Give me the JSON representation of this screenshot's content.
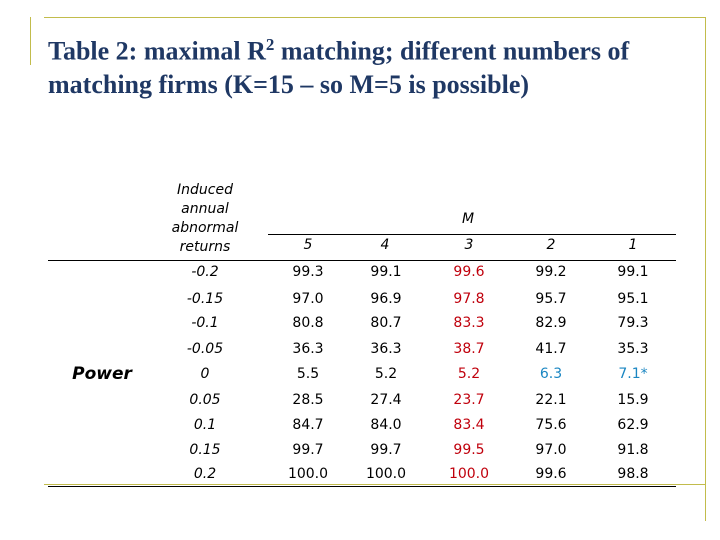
{
  "title": {
    "line1_pre": "Table 2: maximal R",
    "line1_sup": "2",
    "line1_post": " matching; different numbers of",
    "line2": "matching firms (K=15 – so M=5 is possible)"
  },
  "table": {
    "row_header_label": [
      "Induced",
      "annual",
      "abnormal",
      "returns"
    ],
    "group_label": "M",
    "side_label": "Power",
    "columns": [
      "5",
      "4",
      "3",
      "2",
      "1"
    ],
    "rows": [
      {
        "label": "-0.2",
        "values": [
          "99.3",
          "99.1",
          "99.6",
          "99.2",
          "99.1"
        ]
      },
      {
        "label": "-0.15",
        "values": [
          "97.0",
          "96.9",
          "97.8",
          "95.7",
          "95.1"
        ]
      },
      {
        "label": "-0.1",
        "values": [
          "80.8",
          "80.7",
          "83.3",
          "82.9",
          "79.3"
        ]
      },
      {
        "label": "-0.05",
        "values": [
          "36.3",
          "36.3",
          "38.7",
          "41.7",
          "35.3"
        ]
      },
      {
        "label": "0",
        "values": [
          "5.5",
          "5.2",
          "5.2",
          "6.3",
          "7.1*"
        ]
      },
      {
        "label": "0.05",
        "values": [
          "28.5",
          "27.4",
          "23.7",
          "22.1",
          "15.9"
        ]
      },
      {
        "label": "0.1",
        "values": [
          "84.7",
          "84.0",
          "83.4",
          "75.6",
          "62.9"
        ]
      },
      {
        "label": "0.15",
        "values": [
          "99.7",
          "99.7",
          "99.5",
          "97.0",
          "91.8"
        ]
      },
      {
        "label": "0.2",
        "values": [
          "100.0",
          "100.0",
          "100.0",
          "99.6",
          "98.8"
        ]
      }
    ]
  },
  "colors": {
    "title": "#1f3864",
    "frame": "#c2bc4c",
    "highlight_red": "#c0000c",
    "highlight_blue": "#1a86c2"
  }
}
